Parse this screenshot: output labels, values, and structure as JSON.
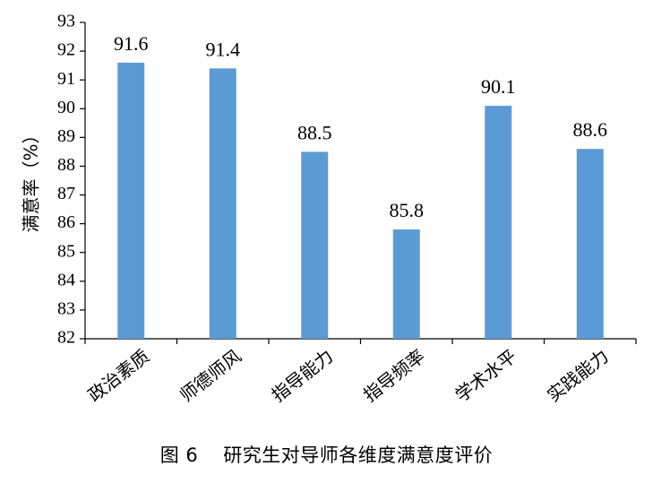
{
  "chart_data": {
    "type": "bar",
    "categories": [
      "政治素质",
      "师德师风",
      "指导能力",
      "指导频率",
      "学术水平",
      "实践能力"
    ],
    "values": [
      91.6,
      91.4,
      88.5,
      85.8,
      90.1,
      88.6
    ],
    "ylabel": "满意率（%）",
    "ylim": [
      82,
      93
    ],
    "yticks": [
      82,
      83,
      84,
      85,
      86,
      87,
      88,
      89,
      90,
      91,
      92,
      93
    ],
    "bar_color": "#5b9bd5",
    "grid": false
  },
  "caption": {
    "figure_number": "图 6",
    "text": "研究生对导师各维度满意度评价"
  }
}
